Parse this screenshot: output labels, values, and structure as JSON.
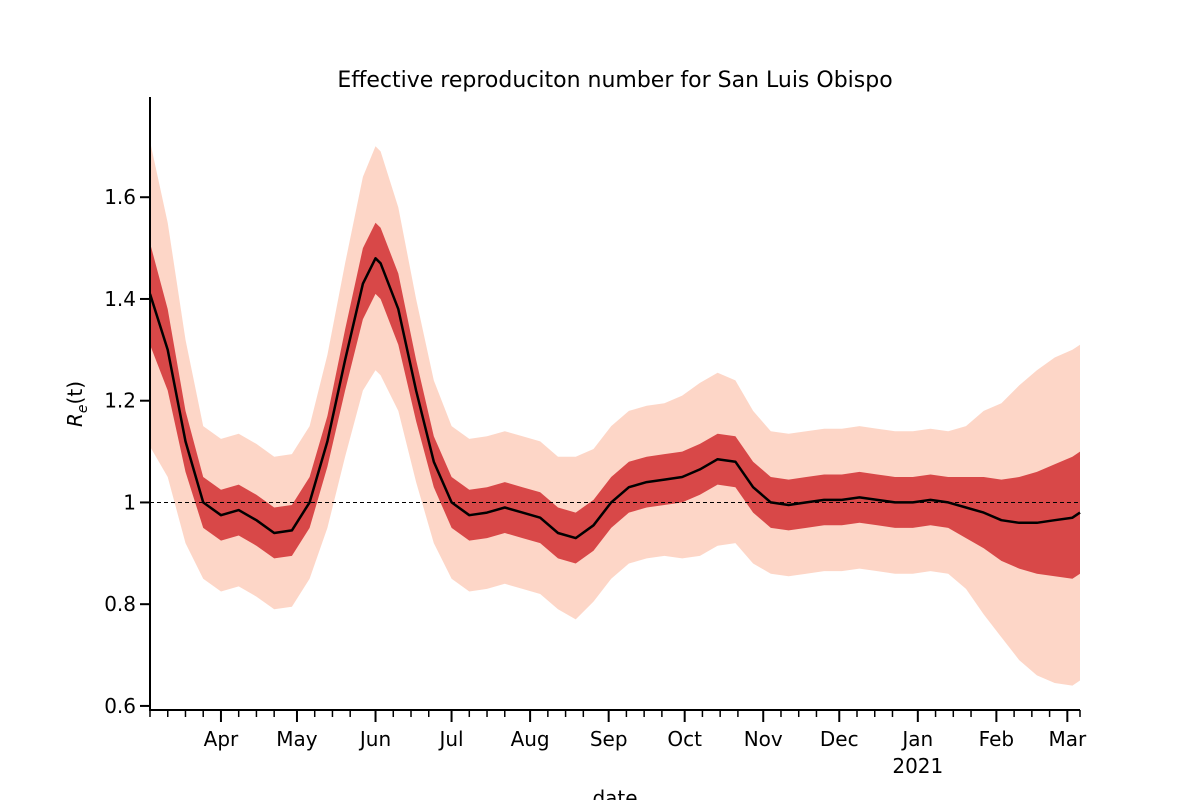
{
  "chart_data": {
    "type": "line",
    "title": "Effective reproduciton number for San Luis Obispo",
    "xlabel": "date",
    "ylabel": {
      "base": "R",
      "sub": "e",
      "rest": "(t)"
    },
    "xlim": [
      0,
      367
    ],
    "ylim": [
      0.592,
      1.797
    ],
    "yticks": [
      0.6,
      0.8,
      1.0,
      1.2,
      1.4,
      1.6
    ],
    "xticks": [
      {
        "value": 28,
        "label": "Apr"
      },
      {
        "value": 58,
        "label": "May"
      },
      {
        "value": 89,
        "label": "Jun"
      },
      {
        "value": 119,
        "label": "Jul"
      },
      {
        "value": 150,
        "label": "Aug"
      },
      {
        "value": 181,
        "label": "Sep"
      },
      {
        "value": 211,
        "label": "Oct"
      },
      {
        "value": 242,
        "label": "Nov"
      },
      {
        "value": 272,
        "label": "Dec"
      },
      {
        "value": 303,
        "label": "Jan"
      },
      {
        "value": 334,
        "label": "Feb"
      },
      {
        "value": 362,
        "label": "Mar"
      }
    ],
    "xtick_sublabels": [
      {
        "value": 303,
        "label": "2021"
      }
    ],
    "minor_xticks": [
      0,
      7,
      14,
      21,
      35,
      42,
      49,
      65,
      72,
      79,
      96,
      103,
      110,
      126,
      133,
      140,
      157,
      164,
      171,
      188,
      195,
      202,
      218,
      225,
      232,
      249,
      256,
      263,
      279,
      286,
      293,
      310,
      317,
      324,
      341,
      348,
      355,
      367
    ],
    "hline": {
      "value": 1.0,
      "color": "#000000"
    },
    "x": [
      0,
      7,
      14,
      21,
      28,
      35,
      42,
      49,
      56,
      63,
      70,
      77,
      84,
      89,
      91,
      98,
      105,
      112,
      119,
      126,
      133,
      140,
      147,
      154,
      161,
      168,
      175,
      182,
      189,
      196,
      203,
      210,
      217,
      224,
      231,
      238,
      245,
      252,
      259,
      266,
      273,
      280,
      287,
      294,
      301,
      308,
      315,
      322,
      329,
      336,
      343,
      350,
      357,
      364,
      367
    ],
    "bands": [
      {
        "color": "#fcbba1",
        "lower": [
          1.11,
          1.05,
          0.92,
          0.85,
          0.825,
          0.835,
          0.815,
          0.79,
          0.795,
          0.85,
          0.95,
          1.09,
          1.22,
          1.26,
          1.25,
          1.18,
          1.04,
          0.92,
          0.85,
          0.825,
          0.83,
          0.84,
          0.83,
          0.82,
          0.79,
          0.77,
          0.805,
          0.85,
          0.88,
          0.89,
          0.895,
          0.89,
          0.895,
          0.915,
          0.92,
          0.88,
          0.86,
          0.855,
          0.86,
          0.865,
          0.865,
          0.87,
          0.865,
          0.86,
          0.86,
          0.865,
          0.86,
          0.83,
          0.78,
          0.735,
          0.69,
          0.66,
          0.645,
          0.64,
          0.65
        ],
        "upper": [
          1.71,
          1.55,
          1.32,
          1.15,
          1.125,
          1.135,
          1.115,
          1.09,
          1.095,
          1.15,
          1.29,
          1.47,
          1.64,
          1.7,
          1.69,
          1.58,
          1.4,
          1.24,
          1.15,
          1.125,
          1.13,
          1.14,
          1.13,
          1.12,
          1.09,
          1.09,
          1.105,
          1.15,
          1.18,
          1.19,
          1.195,
          1.21,
          1.235,
          1.255,
          1.24,
          1.18,
          1.14,
          1.135,
          1.14,
          1.145,
          1.145,
          1.15,
          1.145,
          1.14,
          1.14,
          1.145,
          1.14,
          1.15,
          1.18,
          1.195,
          1.23,
          1.26,
          1.285,
          1.3,
          1.31
        ]
      },
      {
        "color": "#cb181d",
        "lower": [
          1.31,
          1.22,
          1.06,
          0.95,
          0.925,
          0.935,
          0.915,
          0.89,
          0.895,
          0.95,
          1.07,
          1.22,
          1.36,
          1.41,
          1.4,
          1.31,
          1.16,
          1.03,
          0.95,
          0.925,
          0.93,
          0.94,
          0.93,
          0.92,
          0.89,
          0.88,
          0.905,
          0.95,
          0.98,
          0.99,
          0.995,
          1.0,
          1.015,
          1.035,
          1.03,
          0.98,
          0.95,
          0.945,
          0.95,
          0.955,
          0.955,
          0.96,
          0.955,
          0.95,
          0.95,
          0.955,
          0.95,
          0.93,
          0.91,
          0.885,
          0.87,
          0.86,
          0.855,
          0.85,
          0.86
        ],
        "upper": [
          1.51,
          1.38,
          1.18,
          1.05,
          1.025,
          1.035,
          1.015,
          0.99,
          0.995,
          1.05,
          1.17,
          1.34,
          1.5,
          1.55,
          1.54,
          1.45,
          1.28,
          1.13,
          1.05,
          1.025,
          1.03,
          1.04,
          1.03,
          1.02,
          0.99,
          0.98,
          1.005,
          1.05,
          1.08,
          1.09,
          1.095,
          1.1,
          1.115,
          1.135,
          1.13,
          1.08,
          1.05,
          1.045,
          1.05,
          1.055,
          1.055,
          1.06,
          1.055,
          1.05,
          1.05,
          1.055,
          1.05,
          1.05,
          1.05,
          1.045,
          1.05,
          1.06,
          1.075,
          1.09,
          1.1
        ]
      }
    ],
    "median": {
      "color": "#000000",
      "values": [
        1.41,
        1.3,
        1.12,
        1.0,
        0.975,
        0.985,
        0.965,
        0.94,
        0.945,
        1.0,
        1.12,
        1.28,
        1.43,
        1.48,
        1.47,
        1.38,
        1.22,
        1.08,
        1.0,
        0.975,
        0.98,
        0.99,
        0.98,
        0.97,
        0.94,
        0.93,
        0.955,
        1.0,
        1.03,
        1.04,
        1.045,
        1.05,
        1.065,
        1.085,
        1.08,
        1.03,
        1.0,
        0.995,
        1.0,
        1.005,
        1.005,
        1.01,
        1.005,
        1.0,
        1.0,
        1.005,
        1.0,
        0.99,
        0.98,
        0.965,
        0.96,
        0.96,
        0.965,
        0.97,
        0.98
      ]
    }
  }
}
